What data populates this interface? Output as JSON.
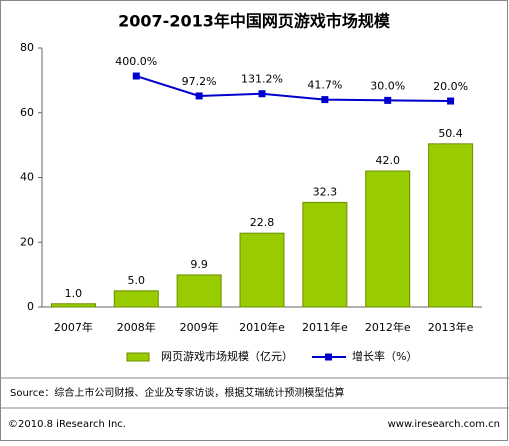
{
  "chart_data": {
    "type": "bar",
    "title": "2007-2013年中国网页游戏市场规模",
    "categories": [
      "2007年",
      "2008年",
      "2009年",
      "2010年e",
      "2011年e",
      "2012年e",
      "2013年e"
    ],
    "series": [
      {
        "name": "网页游戏市场规模（亿元）",
        "type": "bar",
        "color": "#99cc00",
        "values": [
          1.0,
          5.0,
          9.9,
          22.8,
          32.3,
          42.0,
          50.4
        ],
        "value_labels": [
          "1.0",
          "5.0",
          "9.9",
          "22.8",
          "32.3",
          "42.0",
          "50.4"
        ]
      },
      {
        "name": "增长率（%）",
        "type": "line",
        "axis": "y2",
        "color": "#0000cc",
        "values": [
          null,
          400.0,
          97.2,
          131.2,
          41.7,
          30.0,
          20.0
        ],
        "value_labels": [
          null,
          "400.0%",
          "97.2%",
          "131.2%",
          "41.7%",
          "30.0%",
          "20.0%"
        ]
      }
    ],
    "ylim": [
      0,
      80
    ],
    "yticks": [
      0,
      20,
      40,
      60,
      80
    ],
    "y2lim": [
      -3111,
      826
    ],
    "grid": false
  },
  "footer": {
    "source": "Source：综合上市公司财报、企业及专家访谈，根据艾瑞统计预测模型估算",
    "copyright": "©2010.8 iResearch Inc.",
    "website": "www.iresearch.com.cn"
  }
}
